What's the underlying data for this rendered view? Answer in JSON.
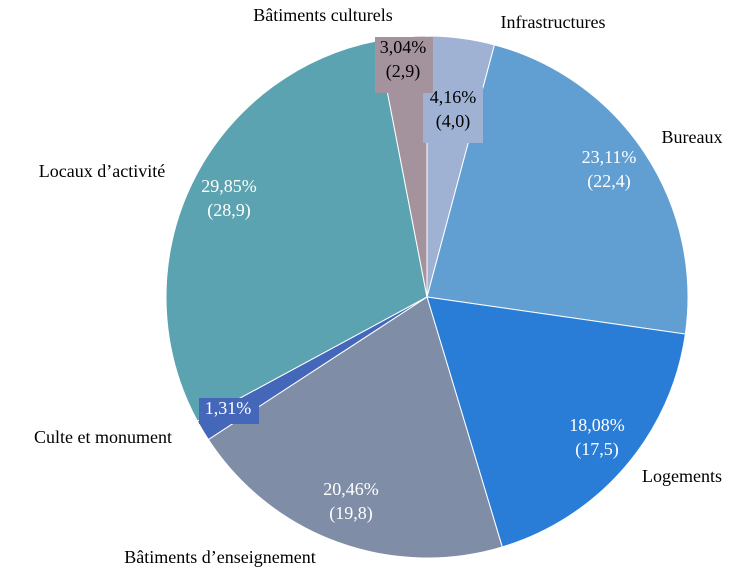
{
  "chart_data": {
    "type": "pie",
    "slices": [
      {
        "category": "Infrastructures",
        "percent_label": "4,16%",
        "value_label": "(4,0)",
        "percent": 4.16,
        "value": 4.0,
        "color": "#9fb2d3",
        "label_color": "#000000"
      },
      {
        "category": "Bureaux",
        "percent_label": "23,11%",
        "value_label": "(22,4)",
        "percent": 23.11,
        "value": 22.4,
        "color": "#619fd3",
        "label_color": "#ffffff"
      },
      {
        "category": "Logements",
        "percent_label": "18,08%",
        "value_label": "(17,5)",
        "percent": 18.08,
        "value": 17.5,
        "color": "#2a7dd7",
        "label_color": "#ffffff"
      },
      {
        "category": "Bâtiments d’enseignement",
        "percent_label": "20,46%",
        "value_label": "(19,8)",
        "percent": 20.46,
        "value": 19.8,
        "color": "#7f8da6",
        "label_color": "#ffffff"
      },
      {
        "category": "Culte et monument",
        "percent_label": "1,31%",
        "value_label": "",
        "percent": 1.31,
        "value": 1.3,
        "color": "#4467b9",
        "label_color": "#ffffff"
      },
      {
        "category": "Locaux d’activité",
        "percent_label": "29,85%",
        "value_label": "(28,9)",
        "percent": 29.85,
        "value": 28.9,
        "color": "#5ba3b0",
        "label_color": "#ffffff"
      },
      {
        "category": "Bâtiments culturels",
        "percent_label": "3,04%",
        "value_label": "(2,9)",
        "percent": 3.04,
        "value": 2.9,
        "color": "#a4929d",
        "label_color": "#000000"
      }
    ]
  }
}
